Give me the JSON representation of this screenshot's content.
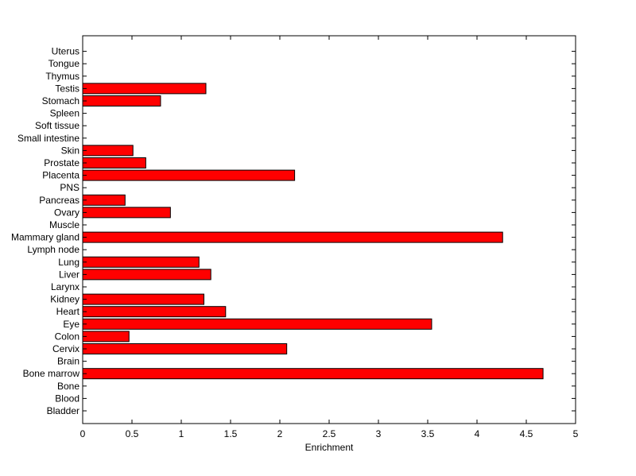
{
  "chart_data": {
    "type": "bar",
    "orientation": "horizontal",
    "title": "",
    "xlabel": "Enrichment",
    "ylabel": "",
    "xlim": [
      0,
      5
    ],
    "xticks": [
      "0",
      "0.5",
      "1",
      "1.5",
      "2",
      "2.5",
      "3",
      "3.5",
      "4",
      "4.5",
      "5"
    ],
    "grid": false,
    "bar_color": "#ff0000",
    "categories": [
      "Bladder",
      "Blood",
      "Bone",
      "Bone marrow",
      "Brain",
      "Cervix",
      "Colon",
      "Eye",
      "Heart",
      "Kidney",
      "Larynx",
      "Liver",
      "Lung",
      "Lymph node",
      "Mammary gland",
      "Muscle",
      "Ovary",
      "Pancreas",
      "PNS",
      "Placenta",
      "Prostate",
      "Skin",
      "Small intestine",
      "Soft tissue",
      "Spleen",
      "Stomach",
      "Testis",
      "Thymus",
      "Tongue",
      "Uterus"
    ],
    "values": [
      0,
      0,
      0,
      4.67,
      0,
      2.07,
      0.47,
      3.54,
      1.45,
      1.23,
      0,
      1.3,
      1.18,
      0,
      4.26,
      0,
      0.89,
      0.43,
      0,
      2.15,
      0.64,
      0.51,
      0,
      0,
      0,
      0.79,
      1.25,
      0,
      0,
      0
    ]
  }
}
